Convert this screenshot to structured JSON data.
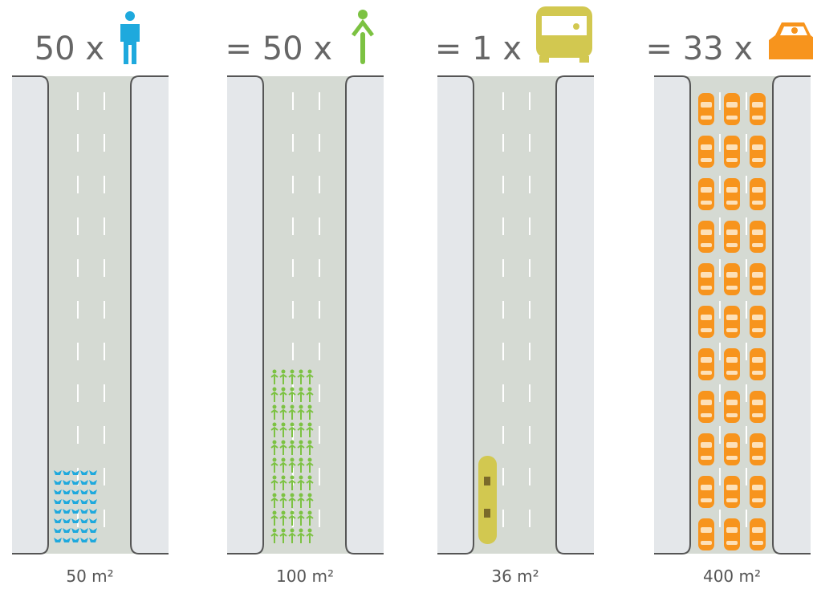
{
  "panels": [
    {
      "heading": "50 x",
      "area": "50 m²"
    },
    {
      "heading": "= 50 x",
      "area": "100 m²"
    },
    {
      "heading": "= 1 x",
      "area": "36 m²"
    },
    {
      "heading": "= 33 x",
      "area": "400 m²"
    }
  ]
}
